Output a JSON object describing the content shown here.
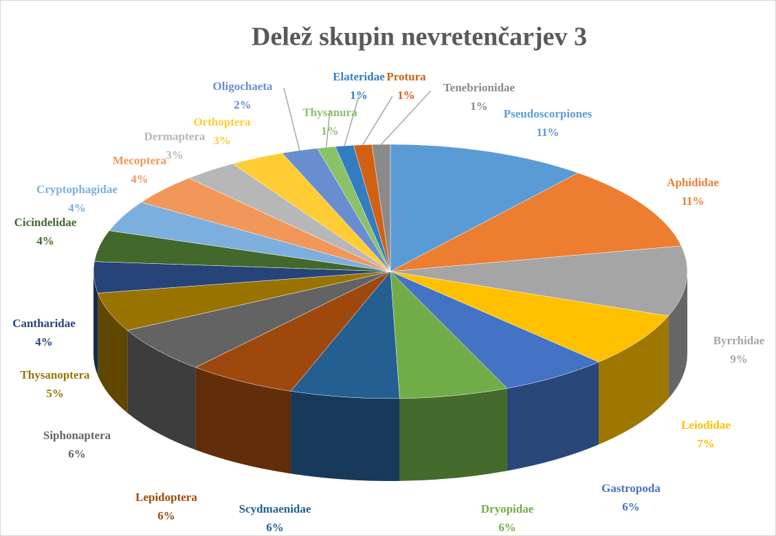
{
  "chart_data": {
    "type": "pie",
    "title": "Delež skupin  nevretenčarjev 3",
    "categories": [
      "Pseudoscorpiones",
      "Aphididae",
      "Byrrhidae",
      "Leiodidae",
      "Gastropoda",
      "Dryopidae",
      "Scydmaenidae",
      "Lepidoptera",
      "Siphonaptera",
      "Thysanoptera",
      "Cantharidae",
      "Cicindelidae",
      "Cryptophagidae",
      "Mecoptera",
      "Dermaptera",
      "Orthoptera",
      "Oligochaeta",
      "Thysanura",
      "Elateridae",
      "Protura",
      "Tenebrionidae"
    ],
    "values": [
      11,
      11,
      9,
      7,
      6,
      6,
      6,
      6,
      6,
      5,
      4,
      4,
      4,
      4,
      3,
      3,
      2,
      1,
      1,
      1,
      1
    ],
    "value_labels": [
      "11%",
      "11%",
      "9%",
      "7%",
      "6%",
      "6%",
      "6%",
      "6%",
      "6%",
      "5%",
      "4%",
      "4%",
      "4%",
      "4%",
      "3%",
      "3%",
      "2%",
      "1%",
      "1%",
      "1%",
      "1%"
    ],
    "colors": [
      "#5b9bd5",
      "#ed7d31",
      "#a5a5a5",
      "#ffc000",
      "#4472c4",
      "#70ad47",
      "#255e91",
      "#9e480e",
      "#636363",
      "#997300",
      "#264478",
      "#43682b",
      "#7cafdd",
      "#f1975a",
      "#b7b7b7",
      "#ffcd33",
      "#698ed0",
      "#8cc168",
      "#327dc2",
      "#d26012",
      "#8a8a8a"
    ]
  }
}
